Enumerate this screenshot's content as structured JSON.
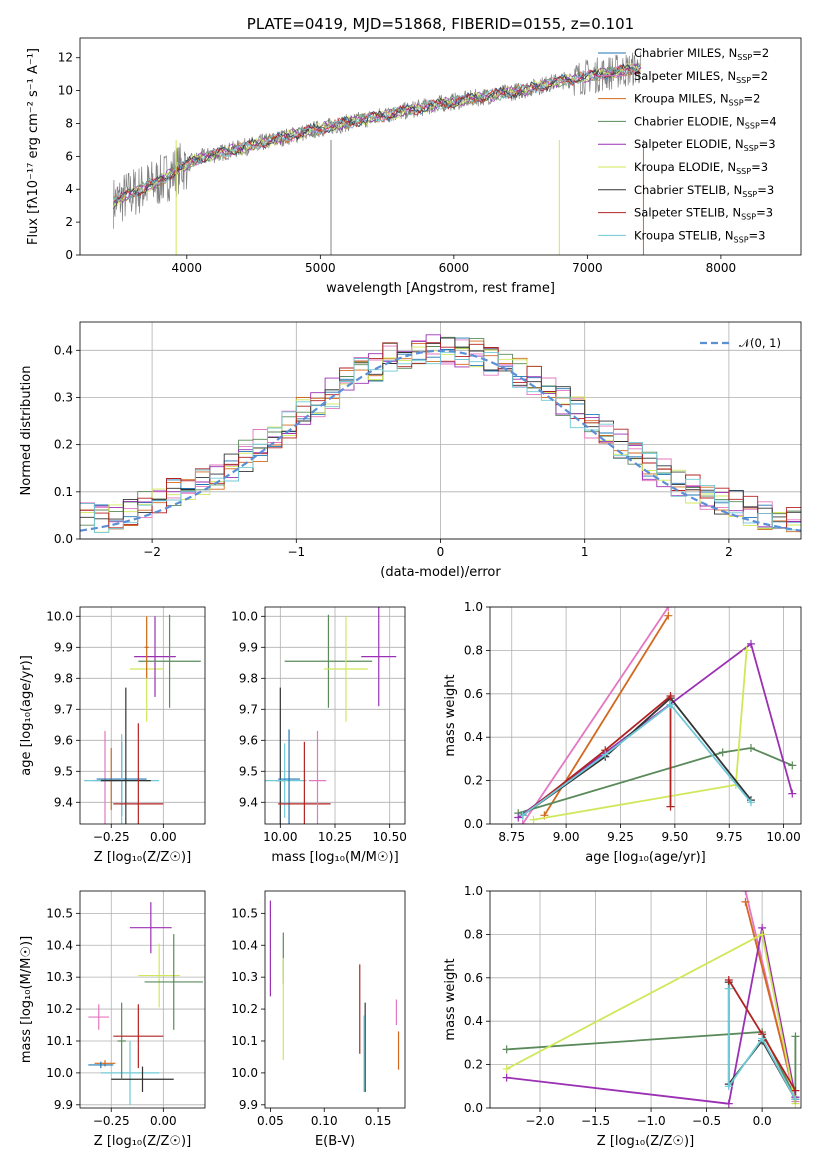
{
  "chart_data": [
    {
      "type": "line",
      "title": "PLATE=0419, MJD=51868, FIBERID=0155, z=0.101",
      "xlabel": "wavelength [Angstrom, rest frame]",
      "ylabel": "Flux [fλ10⁻¹⁷ erg cm⁻² s⁻¹ A⁻¹]",
      "xlim": [
        3200,
        8600
      ],
      "ylim": [
        0,
        13.2
      ],
      "xticks": [
        4000,
        5000,
        6000,
        7000,
        8000
      ],
      "yticks": [
        0,
        2,
        4,
        6,
        8,
        10,
        12
      ],
      "data_color": "#808080",
      "data_trend": [
        [
          3450,
          3.2
        ],
        [
          3600,
          3.8
        ],
        [
          3800,
          4.5
        ],
        [
          3950,
          5.3
        ],
        [
          4100,
          5.9
        ],
        [
          4400,
          6.5
        ],
        [
          4700,
          7.1
        ],
        [
          5000,
          7.7
        ],
        [
          5300,
          8.2
        ],
        [
          5600,
          8.7
        ],
        [
          5900,
          9.2
        ],
        [
          6200,
          9.6
        ],
        [
          6500,
          10.0
        ],
        [
          6800,
          10.6
        ],
        [
          7100,
          11.0
        ],
        [
          7400,
          11.4
        ]
      ],
      "legend_position": "right",
      "series": [
        {
          "name": "Chabrier MILES, N_SSP=2",
          "label_main": "Chabrier MILES, N",
          "label_sub": "SSP",
          "label_tail": "=2",
          "color": "#1f77b4"
        },
        {
          "name": "Salpeter MILES, N_SSP=2",
          "label_main": "Salpeter MILES, N",
          "label_sub": "SSP",
          "label_tail": "=2",
          "color": "#e377c2"
        },
        {
          "name": "Kroupa MILES, N_SSP=2",
          "label_main": "Kroupa MILES, N",
          "label_sub": "SSP",
          "label_tail": "=2",
          "color": "#d2691e"
        },
        {
          "name": "Chabrier ELODIE, N_SSP=4",
          "label_main": "Chabrier ELODIE, N",
          "label_sub": "SSP",
          "label_tail": "=4",
          "color": "#5a8a5a"
        },
        {
          "name": "Salpeter ELODIE, N_SSP=3",
          "label_main": "Salpeter ELODIE, N",
          "label_sub": "SSP",
          "label_tail": "=3",
          "color": "#9b30b4"
        },
        {
          "name": "Kroupa ELODIE, N_SSP=3",
          "label_main": "Kroupa ELODIE, N",
          "label_sub": "SSP",
          "label_tail": "=3",
          "color": "#cfe85a"
        },
        {
          "name": "Chabrier STELIB, N_SSP=3",
          "label_main": "Chabrier STELIB, N",
          "label_sub": "SSP",
          "label_tail": "=3",
          "color": "#333333"
        },
        {
          "name": "Salpeter STELIB, N_SSP=3",
          "label_main": "Salpeter STELIB, N",
          "label_sub": "SSP",
          "label_tail": "=3",
          "color": "#b22222"
        },
        {
          "name": "Kroupa STELIB, N_SSP=3",
          "label_main": "Kroupa STELIB, N",
          "label_sub": "SSP",
          "label_tail": "=3",
          "color": "#6fc9d6"
        }
      ]
    },
    {
      "type": "line",
      "title": "",
      "xlabel": "(data-model)/error",
      "ylabel": "Normed distribution",
      "xlim": [
        -2.5,
        2.5
      ],
      "ylim": [
        0,
        0.46
      ],
      "xticks": [
        -2,
        -1,
        0,
        1,
        2
      ],
      "yticks": [
        0.0,
        0.1,
        0.2,
        0.3,
        0.4
      ],
      "grid": true,
      "bin_width": 0.1,
      "legend_position": "top-right",
      "reference": {
        "name": "𝒩(0, 1)",
        "color": "#5b8fd6",
        "style": "dashed",
        "mean": 0,
        "sigma": 1
      },
      "histogram_series_colors": [
        "#1f77b4",
        "#e377c2",
        "#d2691e",
        "#5a8a5a",
        "#9b30b4",
        "#cfe85a",
        "#333333",
        "#b22222",
        "#6fc9d6"
      ]
    },
    {
      "type": "scatter",
      "title": "",
      "xlabel": "Z [log₁₀(Z/Z☉)]",
      "ylabel": "age  [log₁₀(age/yr)]",
      "xlim": [
        -0.4,
        0.2
      ],
      "ylim": [
        9.33,
        10.03
      ],
      "xticks": [
        -0.25,
        0.0
      ],
      "yticks": [
        9.4,
        9.5,
        9.6,
        9.7,
        9.8,
        9.9,
        10.0
      ],
      "grid": true,
      "crosses": [
        {
          "color": "#e377c2",
          "x": -0.28,
          "xerr": 0.05,
          "y": 9.47,
          "yerr": 0.16
        },
        {
          "color": "#d2691e",
          "x": -0.25,
          "xerr": 0.05,
          "y": 9.475,
          "yerr": 0.1
        },
        {
          "color": "#1f77b4",
          "x": -0.2,
          "xerr": 0.12,
          "y": 9.475,
          "yerr": 0.12
        },
        {
          "color": "#6fc9d6",
          "x": -0.2,
          "xerr": 0.18,
          "y": 9.47,
          "yerr": 0.15
        },
        {
          "color": "#333333",
          "x": -0.18,
          "xerr": 0.12,
          "y": 9.47,
          "yerr": 0.3
        },
        {
          "color": "#b22222",
          "x": -0.12,
          "xerr": 0.12,
          "y": 9.395,
          "yerr": 0.26
        },
        {
          "color": "#cfe85a",
          "x": -0.08,
          "xerr": 0.08,
          "y": 9.83,
          "yerr": 0.17
        },
        {
          "color": "#9b30b4",
          "x": -0.04,
          "xerr": 0.1,
          "y": 9.87,
          "yerr": 0.13
        },
        {
          "color": "#5a8a5a",
          "x": 0.03,
          "xerr": 0.15,
          "y": 9.855,
          "yerr": 0.15
        },
        {
          "color": "#d2691e",
          "x": -0.08,
          "xerr": 0.01,
          "y": 9.9,
          "yerr": 0.1
        }
      ]
    },
    {
      "type": "scatter",
      "title": "",
      "xlabel": "mass [log₁₀(M/M☉)]",
      "ylabel": "",
      "xlim": [
        9.93,
        10.57
      ],
      "ylim": [
        9.33,
        10.03
      ],
      "xticks": [
        10.0,
        10.25,
        10.5
      ],
      "yticks": [
        9.4,
        9.5,
        9.6,
        9.7,
        9.8,
        9.9,
        10.0
      ],
      "grid": true,
      "crosses": [
        {
          "color": "#333333",
          "x": 10.0,
          "xerr": 0.02,
          "y": 9.47,
          "yerr": 0.3
        },
        {
          "color": "#6fc9d6",
          "x": 10.02,
          "xerr": 0.1,
          "y": 9.47,
          "yerr": 0.12
        },
        {
          "color": "#1f77b4",
          "x": 10.04,
          "xerr": 0.05,
          "y": 9.475,
          "yerr": 0.16
        },
        {
          "color": "#b22222",
          "x": 10.11,
          "xerr": 0.12,
          "y": 9.395,
          "yerr": 0.2
        },
        {
          "color": "#e377c2",
          "x": 10.17,
          "xerr": 0.04,
          "y": 9.47,
          "yerr": 0.16
        },
        {
          "color": "#5a8a5a",
          "x": 10.22,
          "xerr": 0.2,
          "y": 9.855,
          "yerr": 0.15
        },
        {
          "color": "#cfe85a",
          "x": 10.3,
          "xerr": 0.1,
          "y": 9.83,
          "yerr": 0.17
        },
        {
          "color": "#9b30b4",
          "x": 10.45,
          "xerr": 0.08,
          "y": 9.87,
          "yerr": 0.16
        }
      ]
    },
    {
      "type": "line",
      "title": "",
      "xlabel": "age  [log₁₀(age/yr)]",
      "ylabel": "mass weight",
      "xlim": [
        8.65,
        10.08
      ],
      "ylim": [
        0,
        1.0
      ],
      "xticks": [
        8.75,
        9.0,
        9.25,
        9.5,
        9.75,
        10.0
      ],
      "yticks": [
        0.0,
        0.2,
        0.4,
        0.6,
        0.8,
        1.0
      ],
      "grid": true,
      "series": [
        {
          "color": "#e377c2",
          "x": [
            8.8,
            9.47
          ],
          "y": [
            0.0,
            1.0
          ]
        },
        {
          "color": "#d2691e",
          "x": [
            8.9,
            9.47
          ],
          "y": [
            0.04,
            0.96
          ]
        },
        {
          "color": "#5a8a5a",
          "x": [
            8.78,
            9.72,
            9.85,
            10.04
          ],
          "y": [
            0.05,
            0.33,
            0.35,
            0.27
          ]
        },
        {
          "color": "#9b30b4",
          "x": [
            8.78,
            9.85,
            10.04
          ],
          "y": [
            0.03,
            0.83,
            0.14
          ]
        },
        {
          "color": "#cfe85a",
          "x": [
            8.85,
            9.78,
            9.83
          ],
          "y": [
            0.02,
            0.18,
            0.8
          ]
        },
        {
          "color": "#333333",
          "x": [
            8.8,
            9.18,
            9.48,
            9.85
          ],
          "y": [
            0.04,
            0.31,
            0.58,
            0.11
          ]
        },
        {
          "color": "#b22222",
          "x": [
            8.8,
            9.18,
            9.48,
            9.48
          ],
          "y": [
            0.04,
            0.34,
            0.59,
            0.08
          ]
        },
        {
          "color": "#6fc9d6",
          "x": [
            8.8,
            9.18,
            9.48,
            9.85
          ],
          "y": [
            0.04,
            0.32,
            0.55,
            0.1
          ]
        }
      ]
    },
    {
      "type": "scatter",
      "title": "",
      "xlabel": "Z [log₁₀(Z/Z☉)]",
      "ylabel": "mass [log₁₀(M/M☉)]",
      "xlim": [
        -0.4,
        0.2
      ],
      "ylim": [
        9.89,
        10.57
      ],
      "xticks": [
        -0.25,
        0.0
      ],
      "yticks": [
        9.9,
        10.0,
        10.1,
        10.2,
        10.3,
        10.4,
        10.5
      ],
      "grid": true,
      "crosses": [
        {
          "color": "#e377c2",
          "x": -0.31,
          "xerr": 0.05,
          "y": 10.175,
          "yerr": 0.04
        },
        {
          "color": "#d2691e",
          "x": -0.28,
          "xerr": 0.05,
          "y": 10.03,
          "yerr": 0.01
        },
        {
          "color": "#1f77b4",
          "x": -0.3,
          "xerr": 0.06,
          "y": 10.025,
          "yerr": 0.01
        },
        {
          "color": "#6fc9d6",
          "x": -0.16,
          "xerr": 0.14,
          "y": 10.0,
          "yerr": 0.1
        },
        {
          "color": "#333333",
          "x": -0.1,
          "xerr": 0.15,
          "y": 9.98,
          "yerr": 0.04
        },
        {
          "color": "#5a8a5a",
          "x": -0.2,
          "xerr": 0.02,
          "y": 10.1,
          "yerr": 0.12
        },
        {
          "color": "#b22222",
          "x": -0.12,
          "xerr": 0.12,
          "y": 10.115,
          "yerr": 0.1
        },
        {
          "color": "#cfe85a",
          "x": -0.02,
          "xerr": 0.1,
          "y": 10.305,
          "yerr": 0.1
        },
        {
          "color": "#9b30b4",
          "x": -0.06,
          "xerr": 0.1,
          "y": 10.455,
          "yerr": 0.08
        },
        {
          "color": "#5a8a5a",
          "x": 0.05,
          "xerr": 0.14,
          "y": 10.285,
          "yerr": 0.15
        }
      ]
    },
    {
      "type": "scatter",
      "title": "",
      "xlabel": "E(B-V)",
      "ylabel": "",
      "xlim": [
        0.045,
        0.175
      ],
      "ylim": [
        9.89,
        10.57
      ],
      "xticks": [
        0.05,
        0.1,
        0.15
      ],
      "yticks": [
        9.9,
        10.0,
        10.1,
        10.2,
        10.3,
        10.4,
        10.5
      ],
      "grid": false,
      "crosses": [
        {
          "color": "#9b30b4",
          "x": 0.05,
          "xerr": 0.0,
          "y": 10.39,
          "yerr": 0.15
        },
        {
          "color": "#5a8a5a",
          "x": 0.062,
          "xerr": 0.0,
          "y": 10.36,
          "yerr": 0.08
        },
        {
          "color": "#cfe85a",
          "x": 0.062,
          "xerr": 0.0,
          "y": 10.2,
          "yerr": 0.16
        },
        {
          "color": "#b22222",
          "x": 0.133,
          "xerr": 0.0,
          "y": 10.2,
          "yerr": 0.14
        },
        {
          "color": "#333333",
          "x": 0.138,
          "xerr": 0.0,
          "y": 10.08,
          "yerr": 0.14
        },
        {
          "color": "#6fc9d6",
          "x": 0.137,
          "xerr": 0.0,
          "y": 10.06,
          "yerr": 0.12
        },
        {
          "color": "#e377c2",
          "x": 0.167,
          "xerr": 0.0,
          "y": 10.19,
          "yerr": 0.04
        },
        {
          "color": "#d2691e",
          "x": 0.169,
          "xerr": 0.0,
          "y": 10.07,
          "yerr": 0.06
        }
      ]
    },
    {
      "type": "line",
      "title": "",
      "xlabel": "Z [log₁₀(Z/Z☉)]",
      "ylabel": "mass weight",
      "xlim": [
        -2.45,
        0.35
      ],
      "ylim": [
        0,
        1.0
      ],
      "xticks": [
        -2.0,
        -1.5,
        -1.0,
        -0.5,
        0.0
      ],
      "yticks": [
        0.0,
        0.2,
        0.4,
        0.6,
        0.8,
        1.0
      ],
      "grid": true,
      "series": [
        {
          "color": "#e377c2",
          "x": [
            -0.15,
            0.3
          ],
          "y": [
            1.0,
            0.03
          ]
        },
        {
          "color": "#d2691e",
          "x": [
            -0.15,
            0.3
          ],
          "y": [
            0.95,
            0.05
          ]
        },
        {
          "color": "#5a8a5a",
          "x": [
            -2.3,
            0.0,
            0.3,
            0.3
          ],
          "y": [
            0.27,
            0.35,
            0.05,
            0.33
          ]
        },
        {
          "color": "#9b30b4",
          "x": [
            -2.3,
            -0.3,
            0.0,
            0.3
          ],
          "y": [
            0.14,
            0.02,
            0.83,
            0.05
          ]
        },
        {
          "color": "#cfe85a",
          "x": [
            -2.3,
            0.0,
            0.3
          ],
          "y": [
            0.18,
            0.8,
            0.02
          ]
        },
        {
          "color": "#333333",
          "x": [
            -0.3,
            -0.3,
            0.0,
            0.3
          ],
          "y": [
            0.58,
            0.11,
            0.31,
            0.04
          ]
        },
        {
          "color": "#b22222",
          "x": [
            -0.3,
            0.0,
            0.3
          ],
          "y": [
            0.59,
            0.34,
            0.08
          ]
        },
        {
          "color": "#6fc9d6",
          "x": [
            -0.3,
            -0.3,
            0.0,
            0.3
          ],
          "y": [
            0.55,
            0.1,
            0.32,
            0.04
          ]
        }
      ]
    }
  ]
}
